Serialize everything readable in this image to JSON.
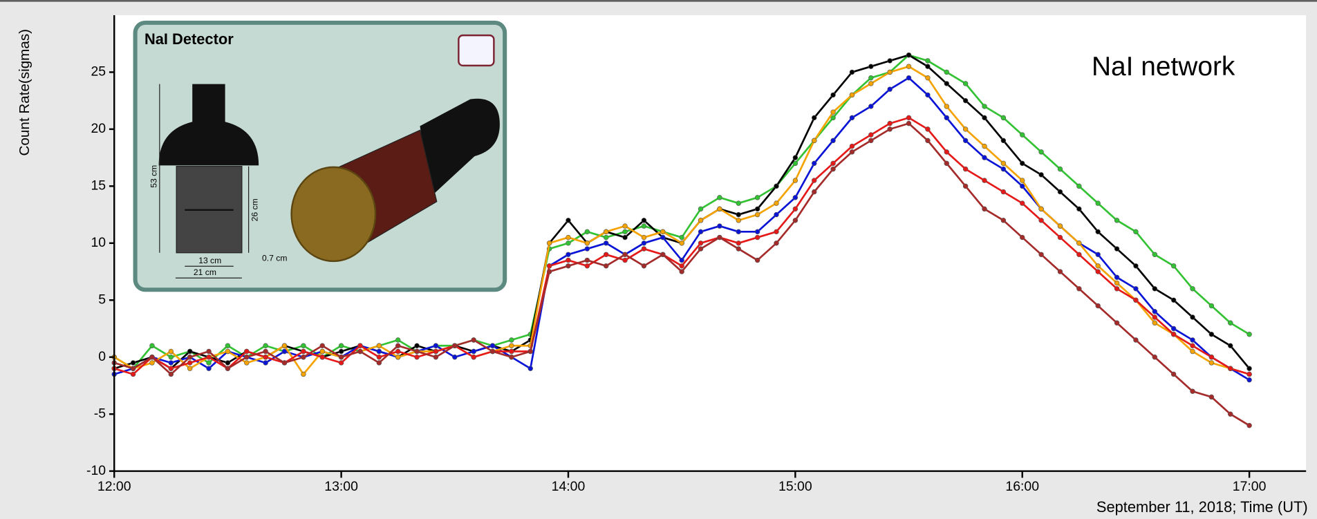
{
  "chart_data": {
    "type": "line",
    "title": "NaI network",
    "y_label": "Count Rate(sigmas)",
    "x_label": "September 11, 2018; Time (UT)",
    "inset": {
      "title": "NaI Detector",
      "labels": [
        "53 cm",
        "26 cm",
        "13 cm",
        "21 cm",
        "0.7 cm"
      ]
    },
    "x": [
      "12:00",
      "12:05",
      "12:10",
      "12:15",
      "12:20",
      "12:25",
      "12:30",
      "12:35",
      "12:40",
      "12:45",
      "12:50",
      "12:55",
      "13:00",
      "13:05",
      "13:10",
      "13:15",
      "13:20",
      "13:25",
      "13:30",
      "13:35",
      "13:40",
      "13:45",
      "13:50",
      "13:55",
      "14:00",
      "14:05",
      "14:10",
      "14:15",
      "14:20",
      "14:25",
      "14:30",
      "14:35",
      "14:40",
      "14:45",
      "14:50",
      "14:55",
      "15:00",
      "15:05",
      "15:10",
      "15:15",
      "15:20",
      "15:25",
      "15:30",
      "15:35",
      "15:40",
      "15:45",
      "15:50",
      "15:55",
      "16:00",
      "16:05",
      "16:10",
      "16:15",
      "16:20",
      "16:25",
      "16:30",
      "16:35",
      "16:40",
      "16:45",
      "16:50",
      "16:55",
      "17:00"
    ],
    "xlim": [
      "12:00",
      "17:15"
    ],
    "xticks": [
      "12:00",
      "13:00",
      "14:00",
      "15:00",
      "16:00",
      "17:00"
    ],
    "ylim": [
      -10,
      30
    ],
    "yticks": [
      -10,
      -5,
      0,
      5,
      10,
      15,
      20,
      25
    ],
    "grid": false,
    "series": [
      {
        "color": "#33c233",
        "values": [
          0,
          -1,
          1,
          0,
          0.5,
          -0.5,
          1,
          0,
          1,
          0.5,
          1,
          0,
          1,
          0.5,
          1,
          1.5,
          0.5,
          1,
          1,
          1.5,
          1,
          1.5,
          2,
          9.5,
          10,
          11,
          10.5,
          11,
          11.5,
          11,
          10.5,
          13,
          14,
          13.5,
          14,
          15,
          17,
          19,
          21,
          23,
          24.5,
          25,
          26.5,
          26,
          25,
          24,
          22,
          21,
          19.5,
          18,
          16.5,
          15,
          13.5,
          12,
          11,
          9,
          8,
          6,
          4.5,
          3,
          2
        ]
      },
      {
        "color": "#000000",
        "values": [
          -1,
          -0.5,
          0,
          -1,
          0.5,
          0,
          -0.5,
          0.5,
          0,
          1,
          0.5,
          0,
          0.5,
          1,
          0.5,
          0,
          1,
          0.5,
          1,
          0.5,
          1,
          0.5,
          1.5,
          10,
          12,
          10,
          11,
          10.5,
          12,
          10.5,
          10,
          12,
          13,
          12.5,
          13,
          15,
          17.5,
          21,
          23,
          25,
          25.5,
          26,
          26.5,
          25.5,
          24,
          22.5,
          21,
          19,
          17,
          16,
          14.5,
          13,
          11,
          9.5,
          8,
          6,
          5,
          3.5,
          2,
          1,
          -1
        ]
      },
      {
        "color": "#0a14d6",
        "values": [
          -1.5,
          -1,
          0,
          -0.5,
          0,
          -1,
          0.5,
          0,
          -0.5,
          0.5,
          0,
          0.5,
          0,
          1,
          0.5,
          0,
          0.5,
          1,
          0,
          0.5,
          1,
          0,
          -1,
          8,
          9,
          9.5,
          10,
          9,
          10,
          10.5,
          8.5,
          11,
          11.5,
          11,
          11,
          12.5,
          14,
          17,
          19,
          21,
          22,
          23.5,
          24.5,
          23,
          21,
          19,
          17.5,
          16.5,
          15,
          13,
          11.5,
          10,
          9,
          7,
          6,
          4,
          2.5,
          1.5,
          0,
          -1,
          -2
        ]
      },
      {
        "color": "#f5a300",
        "values": [
          0,
          -1,
          -0.5,
          0.5,
          -1,
          0,
          0.5,
          -0.5,
          0,
          1,
          -1.5,
          0.5,
          0,
          0.5,
          1,
          0,
          0.5,
          0.5,
          1,
          0,
          0.5,
          1,
          1,
          10,
          10.5,
          10,
          11,
          11.5,
          10.5,
          11,
          10,
          12,
          13,
          12,
          12.5,
          13.5,
          15.5,
          19,
          21.5,
          23,
          24,
          25,
          25.5,
          24.5,
          22,
          20,
          18.5,
          17,
          15.5,
          13,
          11.5,
          10,
          8,
          6.5,
          5,
          3,
          2,
          0.5,
          -0.5,
          -1,
          -1.5
        ]
      },
      {
        "color": "#e61919",
        "values": [
          -1,
          -1.5,
          0,
          -1,
          -0.5,
          0,
          -1,
          0.5,
          0,
          -0.5,
          0.5,
          0,
          -0.5,
          1,
          0,
          0.5,
          0,
          0.5,
          1,
          0,
          0.5,
          0.5,
          0.5,
          8,
          8.5,
          8,
          9,
          8.5,
          9.5,
          9,
          8,
          10,
          10.5,
          10,
          10.5,
          11,
          13,
          15.5,
          17,
          18.5,
          19.5,
          20.5,
          21,
          20,
          18,
          16.5,
          15.5,
          14.5,
          13.5,
          12,
          10.5,
          9,
          7.5,
          6,
          5,
          3.5,
          2,
          1,
          0,
          -1,
          -1.5
        ]
      },
      {
        "color": "#a52a2a",
        "values": [
          -0.5,
          -1,
          0,
          -1.5,
          0,
          0.5,
          -1,
          0,
          0.5,
          -0.5,
          0,
          1,
          0,
          0.5,
          -0.5,
          1,
          0.5,
          0,
          1,
          1.5,
          0.5,
          0,
          0.5,
          7.5,
          8,
          8.5,
          8,
          9,
          8,
          9,
          7.5,
          9.5,
          10.5,
          9.5,
          8.5,
          10,
          12,
          14.5,
          16.5,
          18,
          19,
          20,
          20.5,
          19,
          17,
          15,
          13,
          12,
          10.5,
          9,
          7.5,
          6,
          4.5,
          3,
          1.5,
          0,
          -1.5,
          -3,
          -3.5,
          -5,
          -6
        ]
      }
    ]
  }
}
